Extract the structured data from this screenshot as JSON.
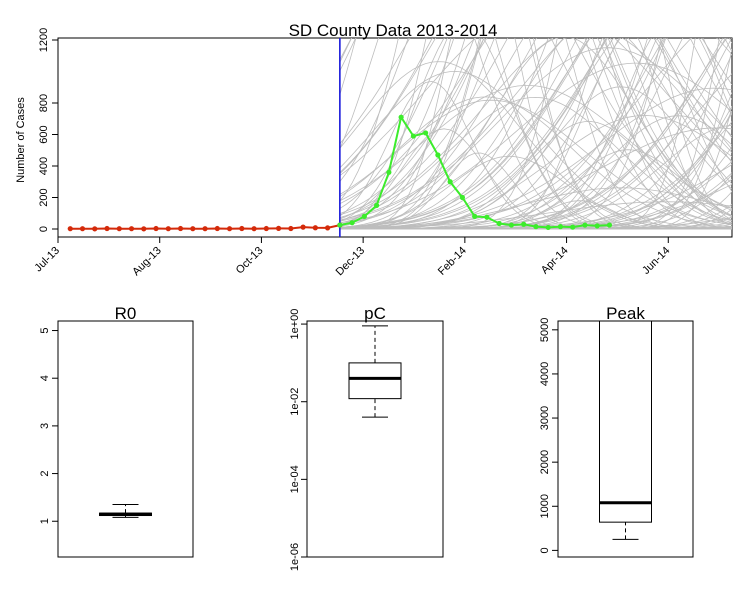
{
  "chart_data": [
    {
      "type": "line",
      "title": "SD County Data 2013-2014",
      "ylabel": "Number of Cases",
      "xlabel": "",
      "x_ticks": [
        "Jul-13",
        "Aug-13",
        "Oct-13",
        "Dec-13",
        "Feb-14",
        "Apr-14",
        "Jun-14"
      ],
      "y_ticks": [
        0,
        200,
        400,
        600,
        800,
        1200
      ],
      "ylim": [
        0,
        1250
      ],
      "xlim": [
        0,
        55
      ],
      "vline_x": 23,
      "vline_color": "#1a1adb",
      "series": [
        {
          "color": "#d42a0a",
          "x": [
            1,
            2,
            3,
            4,
            5,
            6,
            7,
            8,
            9,
            10,
            11,
            12,
            13,
            14,
            15,
            16,
            17,
            18,
            19,
            20,
            21,
            22,
            23
          ],
          "values": [
            2,
            2,
            1,
            3,
            2,
            2,
            1,
            3,
            2,
            3,
            2,
            2,
            3,
            2,
            3,
            2,
            3,
            4,
            3,
            12,
            8,
            7,
            25
          ]
        },
        {
          "color": "#3cec2c",
          "x": [
            23,
            24,
            25,
            26,
            27,
            28,
            29,
            30,
            31,
            32,
            33,
            34,
            35,
            36,
            37,
            38,
            39,
            40,
            41,
            42,
            43,
            44,
            45
          ],
          "values": [
            25,
            40,
            80,
            150,
            360,
            710,
            590,
            610,
            470,
            300,
            200,
            80,
            75,
            35,
            25,
            30,
            15,
            10,
            15,
            12,
            25,
            20,
            25
          ]
        }
      ],
      "curve_color": "#bdbdbd"
    },
    {
      "type": "boxplot",
      "title": "R0",
      "y_ticks": [
        "1",
        "2",
        "3",
        "4",
        "5"
      ],
      "scale": "linear",
      "ylim": [
        0.25,
        5.2
      ],
      "stats": {
        "whisker_low": 1.08,
        "q1": 1.12,
        "median": 1.15,
        "q3": 1.17,
        "whisker_high": 1.35
      }
    },
    {
      "type": "boxplot",
      "title": "pC",
      "y_ticks": [
        "1e-06",
        "1e-04",
        "1e-02",
        "1e+00"
      ],
      "scale": "log10",
      "ylim": [
        1e-06,
        1.2
      ],
      "stats": {
        "whisker_low": 0.004,
        "q1": 0.012,
        "median": 0.04,
        "q3": 0.1,
        "whisker_high": 0.9
      }
    },
    {
      "type": "boxplot",
      "title": "Peak",
      "y_ticks": [
        "0",
        "1000",
        "2000",
        "3000",
        "4000",
        "5000"
      ],
      "scale": "linear",
      "ylim": [
        -150,
        5200
      ],
      "stats": {
        "whisker_low": 250,
        "q1": 640,
        "median": 1080,
        "q3": 5200,
        "whisker_high": 5200
      }
    }
  ]
}
